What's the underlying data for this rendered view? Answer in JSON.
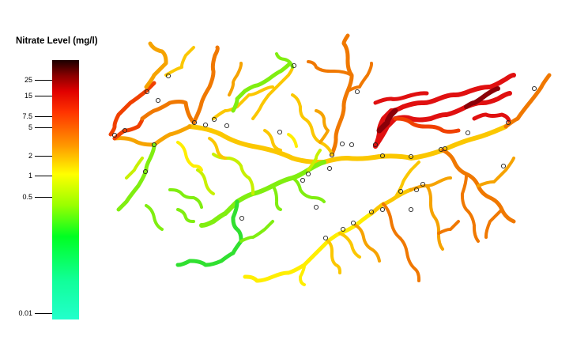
{
  "legend": {
    "title": "Nitrate Level (mg/l)",
    "ticks": [
      {
        "label": "25"
      },
      {
        "label": "15"
      },
      {
        "label": "7.5"
      },
      {
        "label": "5"
      },
      {
        "label": "2"
      },
      {
        "label": "1"
      },
      {
        "label": "0.5"
      },
      {
        "label": "0.01"
      }
    ],
    "color_stops": [
      {
        "value": 35,
        "color": "#1a0000"
      },
      {
        "value": 15,
        "color": "#aa0000"
      },
      {
        "value": 7.5,
        "color": "#ff2000"
      },
      {
        "value": 2,
        "color": "#ff9900"
      },
      {
        "value": 1,
        "color": "#ffff00"
      },
      {
        "value": 0.5,
        "color": "#99ff00"
      },
      {
        "value": 0.2,
        "color": "#00ff33"
      },
      {
        "value": 0.01,
        "color": "#22ffcc"
      }
    ]
  },
  "map": {
    "colors": {
      "dark_red": "#8a0008",
      "red": "#e01010",
      "red_orange": "#f04000",
      "orange": "#f07800",
      "orange_yellow": "#f6a300",
      "yellow_orange": "#fbc700",
      "yellow": "#ffee00",
      "yellow_green": "#c8f000",
      "light_green": "#80ee10",
      "green": "#30e030"
    },
    "station_marker": "circle-outline"
  }
}
